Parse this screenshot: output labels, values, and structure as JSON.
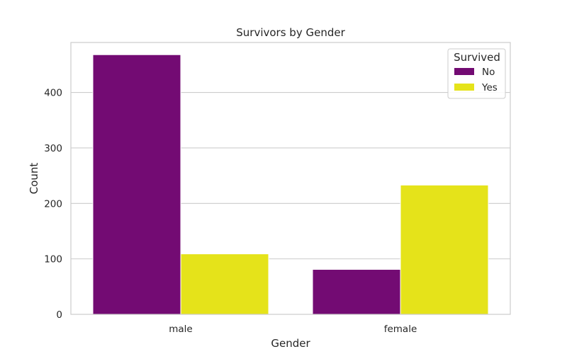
{
  "chart_data": {
    "type": "bar",
    "title": "Survivors by Gender",
    "xlabel": "Gender",
    "ylabel": "Count",
    "categories": [
      "male",
      "female"
    ],
    "series": [
      {
        "name": "No",
        "values": [
          468,
          81
        ],
        "color": "#730b73"
      },
      {
        "name": "Yes",
        "values": [
          109,
          233
        ],
        "color": "#e5e31a"
      }
    ],
    "ylim": [
      0,
      490
    ],
    "yticks": [
      0,
      100,
      200,
      300,
      400
    ],
    "ytick_labels": [
      "0",
      "100",
      "200",
      "300",
      "400"
    ],
    "grid": "horizontal",
    "legend": {
      "title": "Survived",
      "position": "top-right"
    }
  }
}
